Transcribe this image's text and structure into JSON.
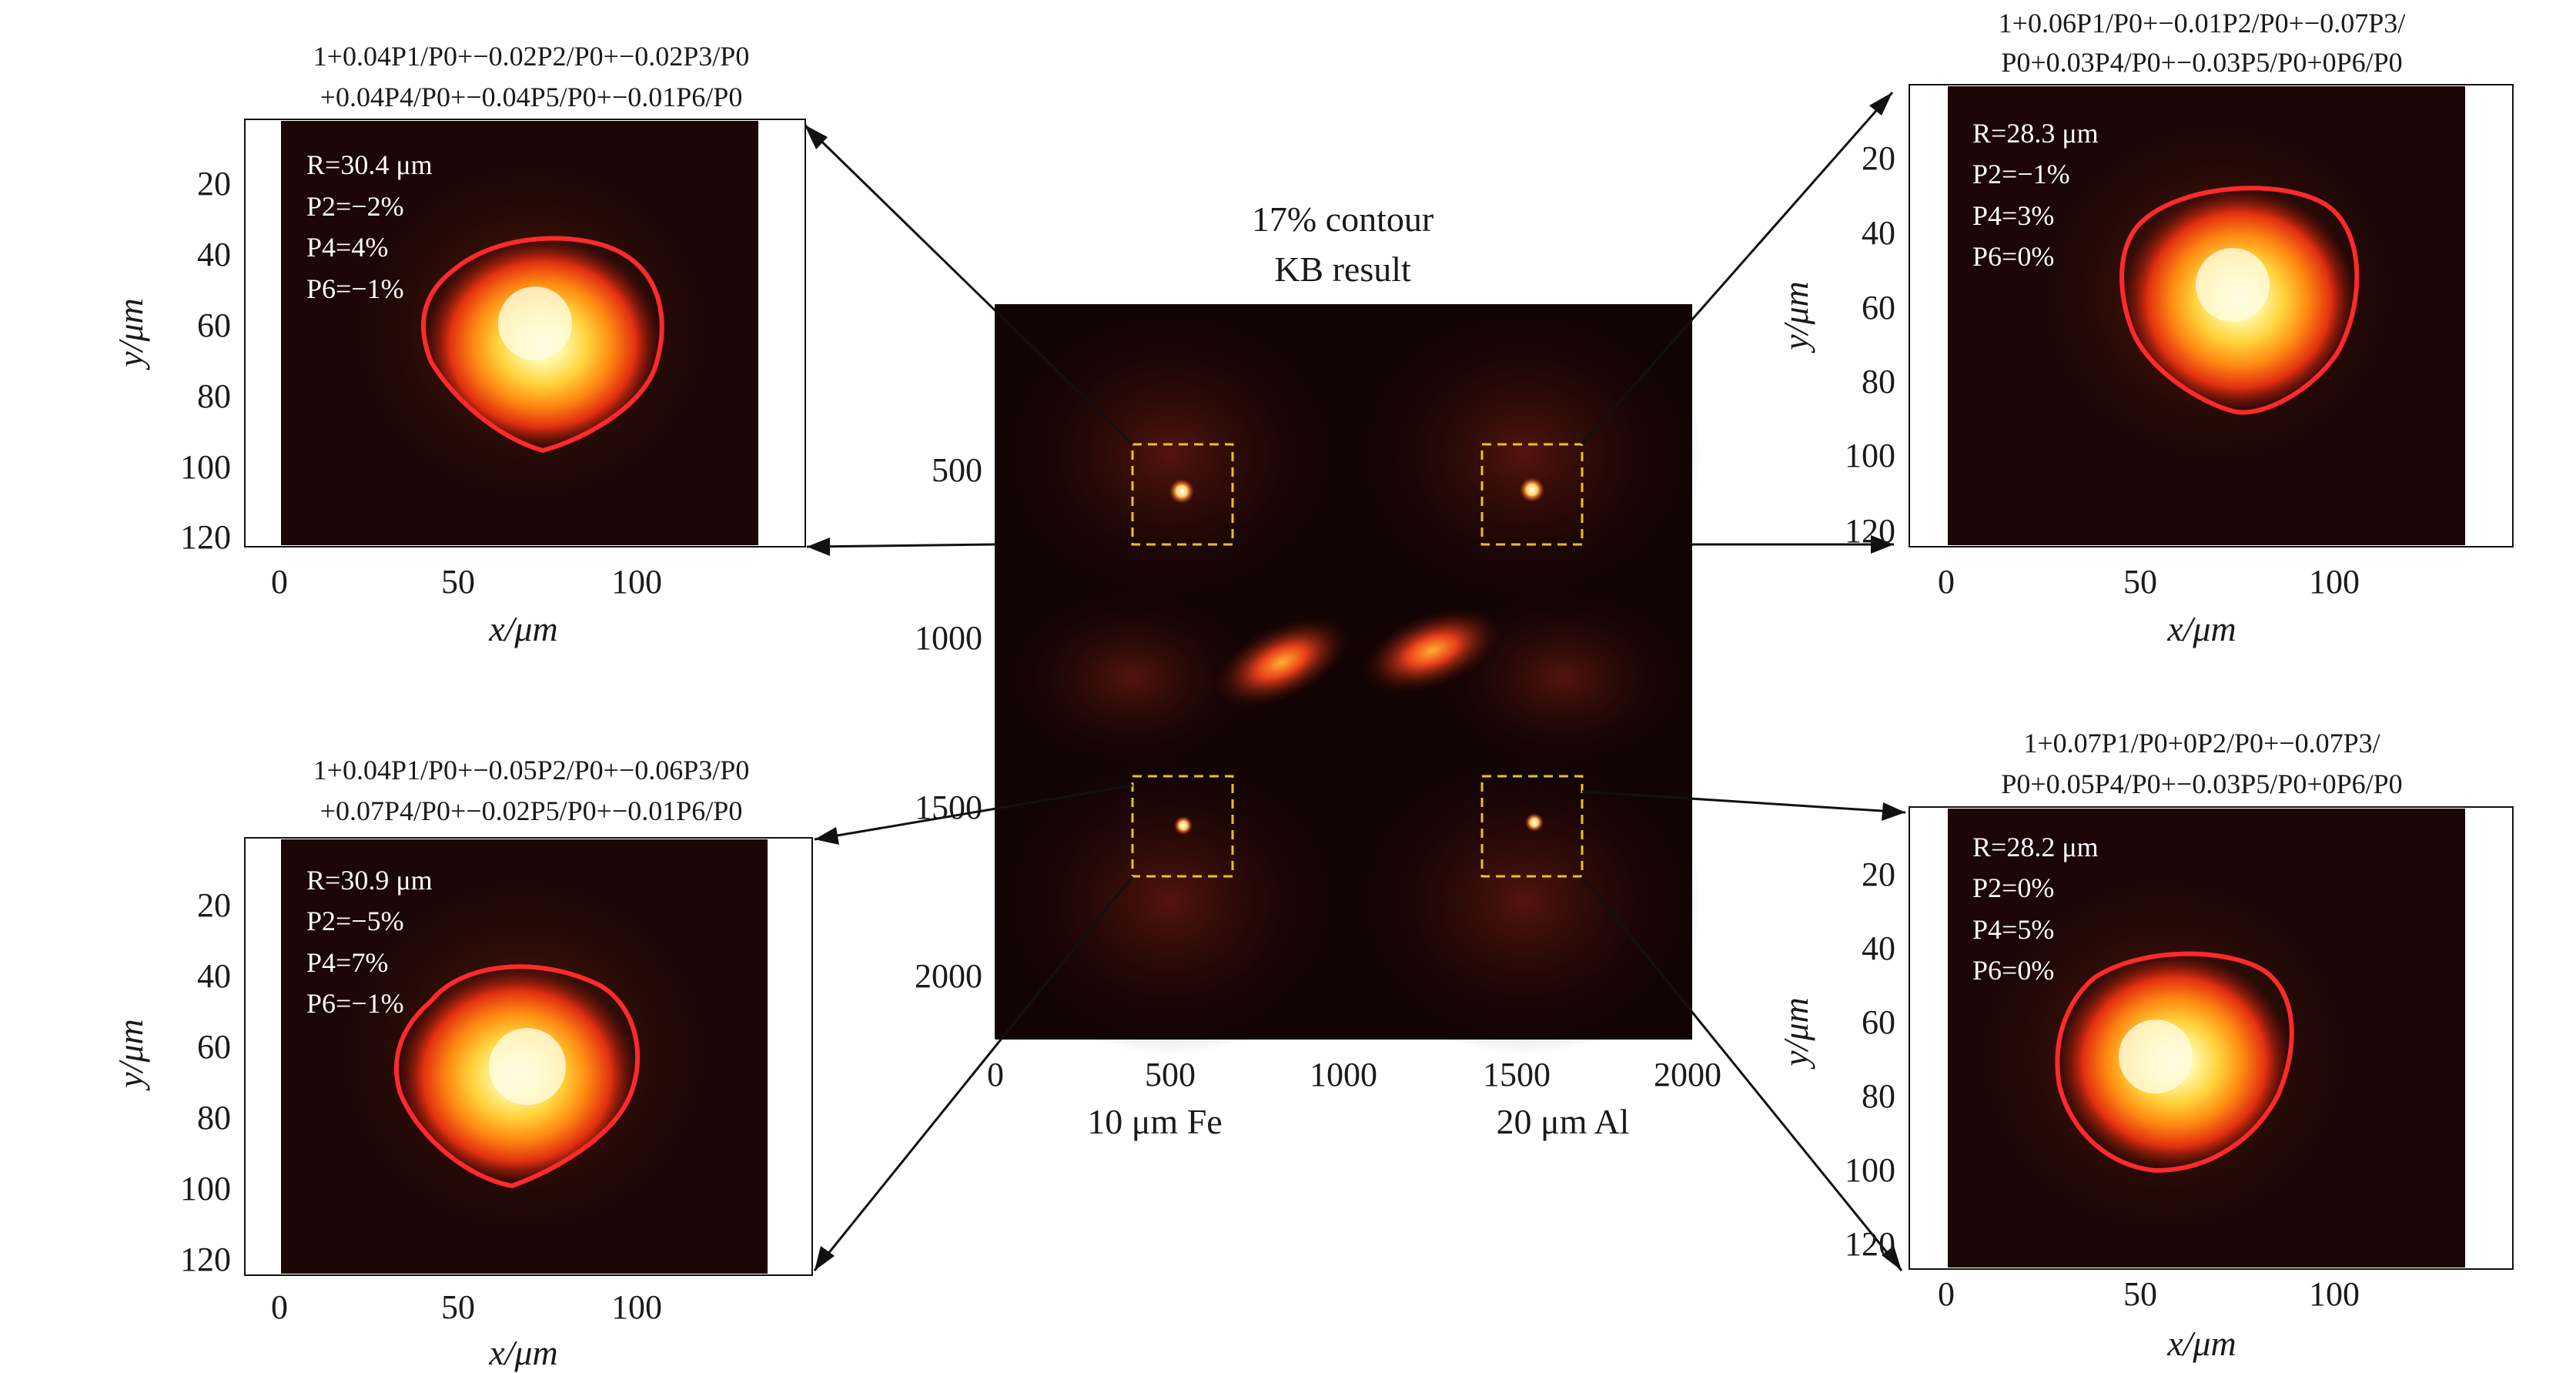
{
  "center": {
    "title_line1": "17% contour",
    "title_line2": "KB result",
    "x_ticks": [
      "0",
      "500",
      "1000",
      "1500",
      "2000"
    ],
    "y_ticks": [
      "500",
      "1000",
      "1500",
      "2000"
    ],
    "label_left": "10 μm Fe",
    "label_right": "20 μm Al"
  },
  "panels": [
    {
      "id": "top-left",
      "formula_line1": "1+0.04P1/P0+−0.02P2/P0+−0.02P3/P0",
      "formula_line2": "+0.04P4/P0+−0.04P5/P0+−0.01P6/P0",
      "R": "R=30.4 μm",
      "P2": "P2=−2%",
      "P4": "P4=4%",
      "P6": "P6=−1%",
      "y_ticks": [
        "20",
        "40",
        "60",
        "80",
        "100",
        "120"
      ],
      "x_ticks": [
        "0",
        "50",
        "100"
      ],
      "xlabel": "x/μm",
      "ylabel": "y/μm"
    },
    {
      "id": "top-right",
      "formula_line1": "1+0.06P1/P0+−0.01P2/P0+−0.07P3/",
      "formula_line2": "P0+0.03P4/P0+−0.03P5/P0+0P6/P0",
      "R": "R=28.3 μm",
      "P2": "P2=−1%",
      "P4": "P4=3%",
      "P6": "P6=0%",
      "y_ticks": [
        "20",
        "40",
        "60",
        "80",
        "100",
        "120"
      ],
      "x_ticks": [
        "0",
        "50",
        "100"
      ],
      "xlabel": "x/μm",
      "ylabel": "y/μm"
    },
    {
      "id": "bottom-left",
      "formula_line1": "1+0.04P1/P0+−0.05P2/P0+−0.06P3/P0",
      "formula_line2": "+0.07P4/P0+−0.02P5/P0+−0.01P6/P0",
      "R": "R=30.9 μm",
      "P2": "P2=−5%",
      "P4": "P4=7%",
      "P6": "P6=−1%",
      "y_ticks": [
        "20",
        "40",
        "60",
        "80",
        "100",
        "120"
      ],
      "x_ticks": [
        "0",
        "50",
        "100"
      ],
      "xlabel": "x/μm",
      "ylabel": "y/μm"
    },
    {
      "id": "bottom-right",
      "formula_line1": "1+0.07P1/P0+0P2/P0+−0.07P3/",
      "formula_line2": "P0+0.05P4/P0+−0.03P5/P0+0P6/P0",
      "R": "R=28.2 μm",
      "P2": "P2=0%",
      "P4": "P4=5%",
      "P6": "P6=0%",
      "y_ticks": [
        "20",
        "40",
        "60",
        "80",
        "100",
        "120"
      ],
      "x_ticks": [
        "0",
        "50",
        "100"
      ],
      "xlabel": "x/μm",
      "ylabel": "y/μm"
    }
  ],
  "colors": {
    "hot_core": "#ffffc8",
    "mid": "#ff7a10",
    "contour": "#ff2a2a",
    "background": "#1a0706"
  }
}
